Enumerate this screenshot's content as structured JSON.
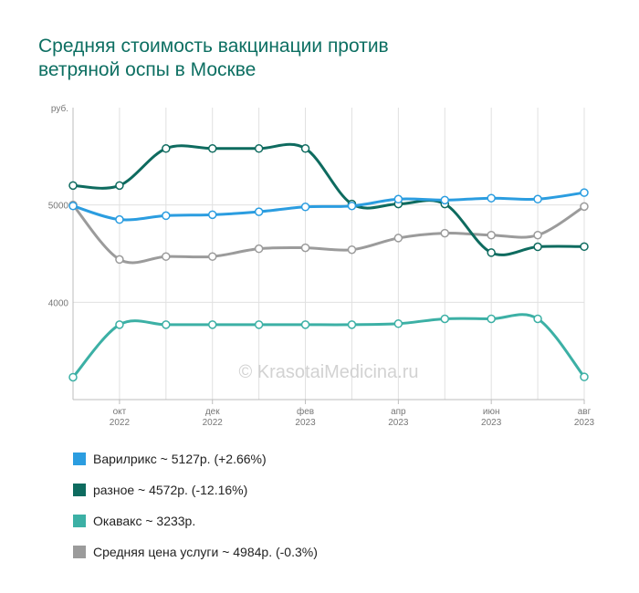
{
  "title_lines": [
    "Средняя стоимость вакцинации против",
    "ветряной оспы в Москве"
  ],
  "chart_data": {
    "type": "line",
    "y_unit": "руб.",
    "ylim": [
      3000,
      6000
    ],
    "y_ticks": [
      4000,
      5000
    ],
    "x_points": 12,
    "x_ticks": [
      {
        "idx": 1,
        "month": "окт",
        "year": "2022"
      },
      {
        "idx": 3,
        "month": "дек",
        "year": "2022"
      },
      {
        "idx": 5,
        "month": "фев",
        "year": "2023"
      },
      {
        "idx": 7,
        "month": "апр",
        "year": "2023"
      },
      {
        "idx": 9,
        "month": "июн",
        "year": "2023"
      },
      {
        "idx": 11,
        "month": "авг",
        "year": "2023"
      }
    ],
    "watermark": "© KrasotaiMedicina.ru",
    "series": [
      {
        "name": "Варилрикс",
        "color": "#2b9de0",
        "values": [
          4990,
          4850,
          4890,
          4900,
          4930,
          4980,
          4990,
          5060,
          5050,
          5070,
          5060,
          5127
        ]
      },
      {
        "name": "разное",
        "color": "#0e6b5f",
        "values": [
          5200,
          5200,
          5580,
          5580,
          5580,
          5580,
          5010,
          5010,
          5010,
          4510,
          4570,
          4572
        ]
      },
      {
        "name": "Окавакс",
        "color": "#3cb0a5",
        "values": [
          3230,
          3770,
          3770,
          3770,
          3770,
          3770,
          3770,
          3780,
          3830,
          3830,
          3830,
          3233
        ]
      },
      {
        "name": "Средняя цена услуги",
        "color": "#9b9b9b",
        "values": [
          5000,
          4440,
          4470,
          4470,
          4550,
          4560,
          4540,
          4660,
          4710,
          4690,
          4690,
          4984
        ]
      }
    ]
  },
  "legend": [
    {
      "label": "Варилрикс ~ 5127р. (+2.66%)",
      "color": "#2b9de0"
    },
    {
      "label": "разное ~ 4572р. (-12.16%)",
      "color": "#0e6b5f"
    },
    {
      "label": "Окавакс ~ 3233р.",
      "color": "#3cb0a5"
    },
    {
      "label": "Средняя цена услуги ~ 4984р. (-0.3%)",
      "color": "#9b9b9b"
    }
  ]
}
